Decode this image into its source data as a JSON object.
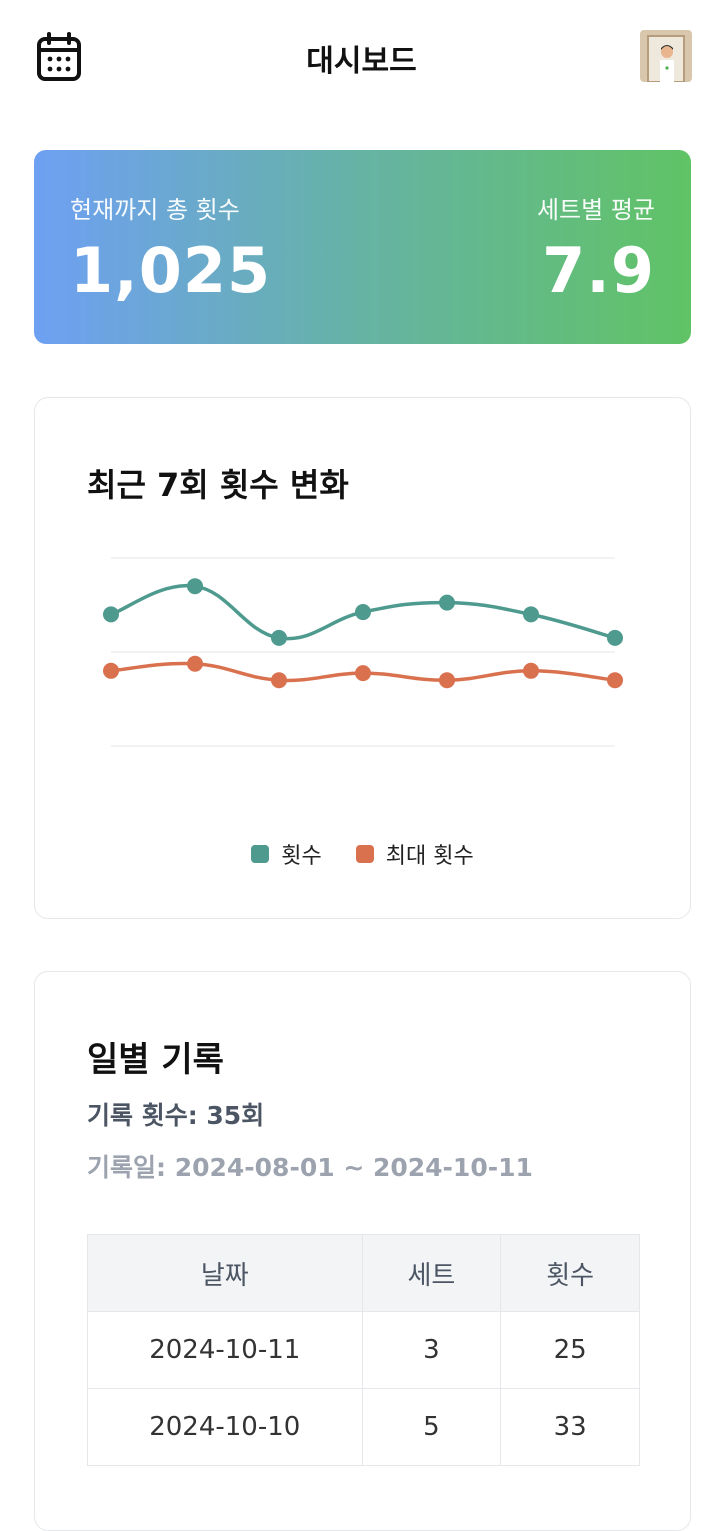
{
  "header": {
    "title": "대시보드",
    "calendar_icon": "calendar-icon",
    "avatar_icon": "user-avatar"
  },
  "stats": {
    "total_label": "현재까지 총 횟수",
    "total_value": "1,025",
    "avg_label": "세트별 평균",
    "avg_value": "7.9",
    "gradient": [
      "#6ea0f3",
      "#60c365"
    ]
  },
  "chart": {
    "title": "최근 7회 횟수 변화"
  },
  "chart_data": {
    "type": "line",
    "x": [
      1,
      2,
      3,
      4,
      5,
      6,
      7
    ],
    "ylim": [
      0,
      40
    ],
    "grid": true,
    "legend": "bottom",
    "series": [
      {
        "name": "횟수",
        "color": "#4e9a8f",
        "values": [
          28,
          34,
          23,
          28.5,
          30.5,
          28,
          23
        ]
      },
      {
        "name": "최대 횟수",
        "color": "#d9714f",
        "values": [
          16,
          17.5,
          14,
          15.5,
          14,
          16,
          14
        ]
      }
    ]
  },
  "records": {
    "title": "일별 기록",
    "count_text": "기록 횟수: 35회",
    "range_text": "기록일: 2024-08-01 ~ 2024-10-11",
    "columns": [
      "날짜",
      "세트",
      "횟수"
    ],
    "rows": [
      [
        "2024-10-11",
        "3",
        "25"
      ],
      [
        "2024-10-10",
        "5",
        "33"
      ]
    ]
  }
}
